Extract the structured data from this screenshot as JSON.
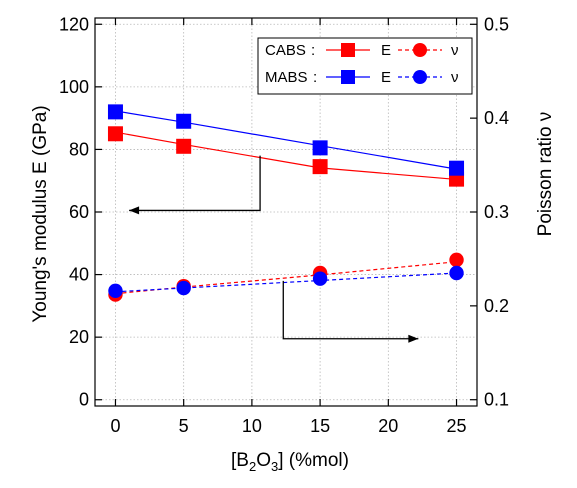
{
  "chart_data": {
    "type": "line",
    "title": "",
    "x": [
      0,
      5,
      15,
      25
    ],
    "xlabel": {
      "pre": "[B",
      "sub1": "2",
      "mid": "O",
      "sub2": "3",
      "post": "] (%mol)"
    },
    "xlim": [
      -1.5,
      26.5
    ],
    "xticks": [
      0,
      5,
      10,
      15,
      20,
      25
    ],
    "ylabel": "Young's modulus E (GPa)",
    "ylim": [
      -2,
      122
    ],
    "yticks": [
      0,
      20,
      40,
      60,
      80,
      100,
      120
    ],
    "y2label": "Poisson ratio ν",
    "y2lim": [
      0.0933,
      0.5067
    ],
    "y2ticks": [
      0.1,
      0.2,
      0.3,
      0.4,
      0.5
    ],
    "y2ticklabels": [
      "0.1",
      "0.2",
      "0.3",
      "0.4",
      "0.5"
    ],
    "grid": true,
    "legend_position": "top-right",
    "series": [
      {
        "id": "cabs-E",
        "legend_group": "CABS",
        "label": "E",
        "axis": "left",
        "marker": "square",
        "line": "solid",
        "color": "#ff0000",
        "values": [
          85,
          81,
          74.5,
          70.5
        ],
        "fit": [
          85.5,
          81.6,
          74.1,
          70.4
        ]
      },
      {
        "id": "mabs-E",
        "legend_group": "MABS",
        "label": "E",
        "axis": "left",
        "marker": "square",
        "line": "solid",
        "color": "#0000ff",
        "values": [
          92,
          89,
          80.5,
          74
        ],
        "fit": [
          92.3,
          88.7,
          81.2,
          73.7
        ]
      },
      {
        "id": "cabs-nu",
        "legend_group": "CABS",
        "label": "ν",
        "axis": "right",
        "marker": "circle",
        "line": "dashed",
        "color": "#ff0000",
        "values": [
          0.212,
          0.221,
          0.235,
          0.249
        ],
        "fit": [
          0.213,
          0.22,
          0.233,
          0.247
        ]
      },
      {
        "id": "mabs-nu",
        "legend_group": "MABS",
        "label": "ν",
        "axis": "right",
        "marker": "circle",
        "line": "dashed",
        "color": "#0000ff",
        "values": [
          0.216,
          0.219,
          0.229,
          0.235
        ],
        "fit": [
          0.215,
          0.219,
          0.227,
          0.235
        ]
      }
    ],
    "legend": {
      "groups": [
        "CABS",
        "MABS"
      ],
      "label_E": "E",
      "label_nu": "ν"
    },
    "annotations": [
      {
        "type": "arrow",
        "points": [
          [
            10.6,
            78
          ],
          [
            10.6,
            60.5
          ],
          [
            1,
            60.5
          ]
        ],
        "color": "#000000"
      },
      {
        "type": "arrow",
        "points": [
          [
            12.3,
            38
          ],
          [
            12.3,
            19.5
          ],
          [
            22.2,
            19.5
          ]
        ],
        "color": "#000000"
      }
    ]
  }
}
